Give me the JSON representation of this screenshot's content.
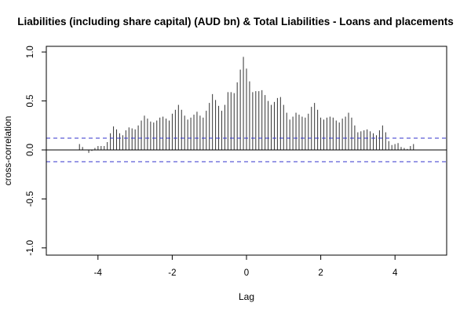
{
  "chart_data": {
    "type": "bar",
    "title": "Liabilities (including share capital) (AUD bn)  & Total Liabilities - Loans and placements",
    "xlabel": "Lag",
    "ylabel": "cross-correlation",
    "xlim": [
      -5.25,
      5.5
    ],
    "ylim": [
      -1.05,
      1.05
    ],
    "x_ticks": [
      -4,
      -2,
      0,
      2,
      4
    ],
    "x_tick_labels": [
      "-4",
      "-2",
      "0",
      "2",
      "4"
    ],
    "y_ticks": [
      -1.0,
      -0.5,
      0.0,
      0.5,
      1.0
    ],
    "y_tick_labels": [
      "-1.0",
      "-0.5",
      "0.0",
      "0.5",
      "1.0"
    ],
    "confidence_band": 0.12,
    "grid": false,
    "colors": {
      "bars": "#333333",
      "confidence": "#3333cc",
      "zero_line": "#000000"
    },
    "lag_step": 0.0833,
    "values": [
      0.06,
      0.03,
      0.0,
      -0.03,
      -0.01,
      0.02,
      0.04,
      0.04,
      0.04,
      0.08,
      0.17,
      0.24,
      0.21,
      0.17,
      0.15,
      0.2,
      0.23,
      0.22,
      0.21,
      0.25,
      0.3,
      0.35,
      0.32,
      0.29,
      0.28,
      0.3,
      0.33,
      0.34,
      0.32,
      0.3,
      0.37,
      0.41,
      0.46,
      0.41,
      0.35,
      0.31,
      0.33,
      0.36,
      0.39,
      0.35,
      0.33,
      0.4,
      0.48,
      0.57,
      0.51,
      0.45,
      0.4,
      0.46,
      0.59,
      0.59,
      0.58,
      0.69,
      0.82,
      0.95,
      0.83,
      0.7,
      0.59,
      0.6,
      0.6,
      0.61,
      0.56,
      0.5,
      0.46,
      0.49,
      0.53,
      0.54,
      0.46,
      0.38,
      0.31,
      0.34,
      0.38,
      0.36,
      0.34,
      0.33,
      0.37,
      0.44,
      0.48,
      0.41,
      0.33,
      0.31,
      0.33,
      0.34,
      0.33,
      0.3,
      0.28,
      0.32,
      0.34,
      0.38,
      0.33,
      0.25,
      0.18,
      0.19,
      0.2,
      0.21,
      0.19,
      0.17,
      0.15,
      0.2,
      0.25,
      0.18,
      0.09,
      0.05,
      0.06,
      0.07,
      0.03,
      0.02,
      0.01,
      0.04,
      0.06
    ]
  }
}
